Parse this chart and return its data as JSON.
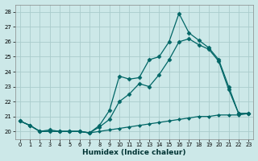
{
  "xlabel": "Humidex (Indice chaleur)",
  "bg_color": "#cce8e8",
  "grid_color": "#aacccc",
  "line_color": "#006666",
  "xlim": [
    -0.5,
    23.5
  ],
  "ylim": [
    19.5,
    28.5
  ],
  "yticks": [
    20,
    21,
    22,
    23,
    24,
    25,
    26,
    27,
    28
  ],
  "xticks": [
    0,
    1,
    2,
    3,
    4,
    5,
    6,
    7,
    8,
    9,
    10,
    11,
    12,
    13,
    14,
    15,
    16,
    17,
    18,
    19,
    20,
    21,
    22,
    23
  ],
  "line1_x": [
    0,
    1,
    2,
    3,
    4,
    5,
    6,
    7,
    8,
    9,
    10,
    11,
    12,
    13,
    14,
    15,
    16,
    17,
    18,
    19,
    20,
    21,
    22,
    23
  ],
  "line1_y": [
    20.7,
    20.4,
    20.0,
    20.1,
    20.0,
    20.0,
    20.0,
    19.9,
    20.4,
    21.4,
    23.7,
    23.5,
    23.6,
    24.8,
    25.0,
    26.0,
    27.9,
    26.6,
    26.1,
    25.6,
    24.8,
    23.0,
    21.2,
    21.2
  ],
  "line2_x": [
    0,
    1,
    2,
    3,
    4,
    5,
    6,
    7,
    8,
    9,
    10,
    11,
    12,
    13,
    14,
    15,
    16,
    17,
    18,
    19,
    20,
    21,
    22,
    23
  ],
  "line2_y": [
    20.7,
    20.4,
    20.0,
    20.0,
    20.0,
    20.0,
    20.0,
    19.9,
    20.3,
    20.8,
    22.0,
    22.5,
    23.2,
    23.0,
    23.8,
    24.8,
    26.0,
    26.2,
    25.8,
    25.5,
    24.7,
    22.8,
    21.2,
    21.2
  ],
  "line3_x": [
    0,
    1,
    2,
    3,
    4,
    5,
    6,
    7,
    8,
    9,
    10,
    11,
    12,
    13,
    14,
    15,
    16,
    17,
    18,
    19,
    20,
    21,
    22,
    23
  ],
  "line3_y": [
    20.7,
    20.4,
    20.0,
    20.0,
    20.0,
    20.0,
    20.0,
    19.9,
    20.0,
    20.1,
    20.2,
    20.3,
    20.4,
    20.5,
    20.6,
    20.7,
    20.8,
    20.9,
    21.0,
    21.0,
    21.1,
    21.1,
    21.1,
    21.2
  ]
}
